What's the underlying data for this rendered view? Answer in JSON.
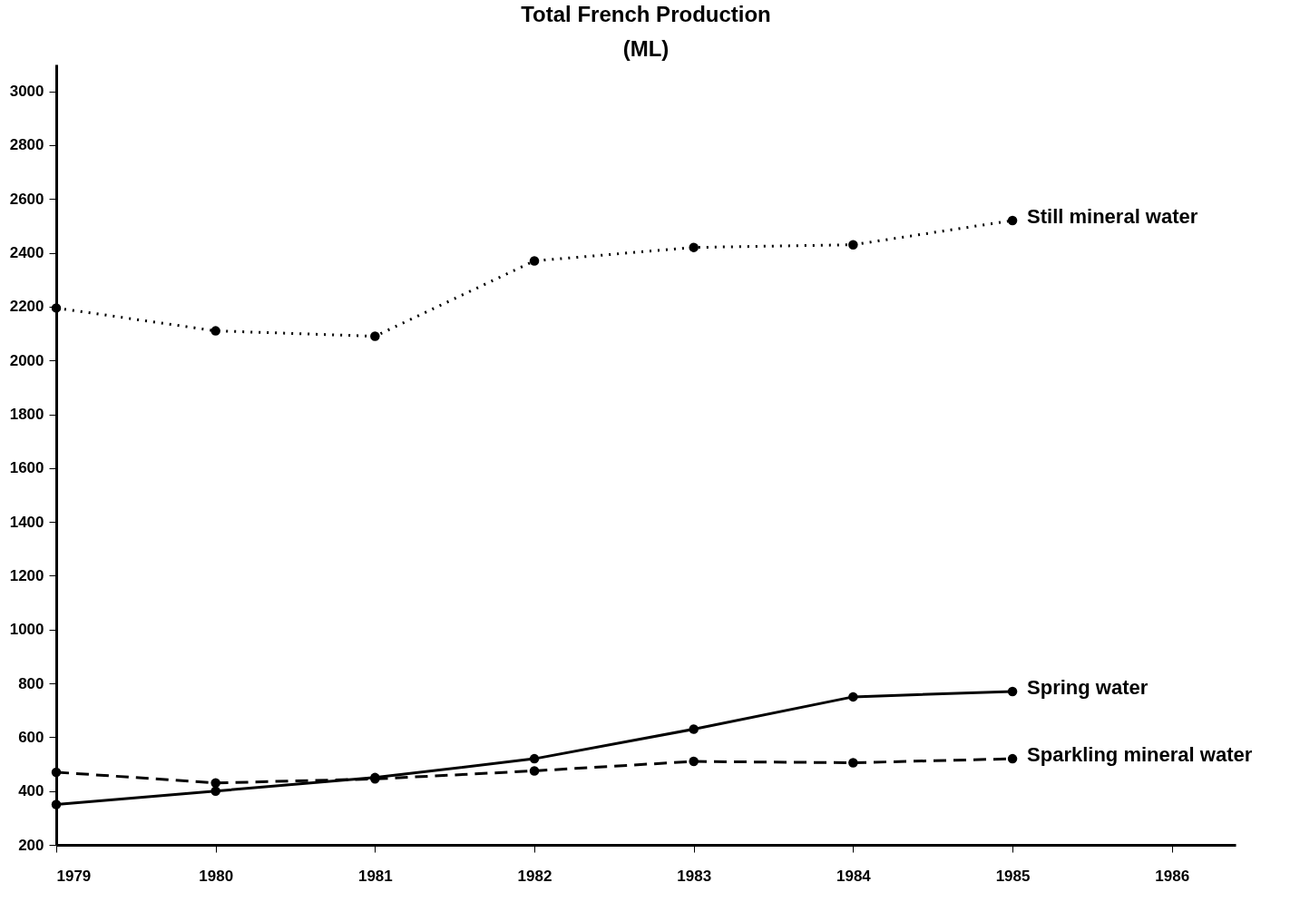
{
  "chart_data": {
    "type": "line",
    "title": "Total French Production",
    "subtitle": "(ML)",
    "x": [
      1979,
      1980,
      1981,
      1982,
      1983,
      1984,
      1985
    ],
    "xlim": [
      1979,
      1986.4
    ],
    "xticks": [
      1979,
      1980,
      1981,
      1982,
      1983,
      1984,
      1985,
      1986
    ],
    "ylim": [
      200,
      3100
    ],
    "yticks": [
      200,
      400,
      600,
      800,
      1000,
      1200,
      1400,
      1600,
      1800,
      2000,
      2200,
      2400,
      2600,
      2800,
      3000
    ],
    "grid": false,
    "marker": "circle",
    "series": [
      {
        "name": "Still mineral water",
        "color": "#000000",
        "line_style": "dotted",
        "values": [
          2195,
          2110,
          2090,
          2370,
          2420,
          2430,
          2520
        ]
      },
      {
        "name": "Spring water",
        "color": "#000000",
        "line_style": "solid",
        "values": [
          350,
          400,
          450,
          520,
          630,
          750,
          770
        ]
      },
      {
        "name": "Sparkling mineral water",
        "color": "#000000",
        "line_style": "dashed",
        "values": [
          470,
          430,
          445,
          475,
          510,
          505,
          520
        ]
      }
    ]
  }
}
